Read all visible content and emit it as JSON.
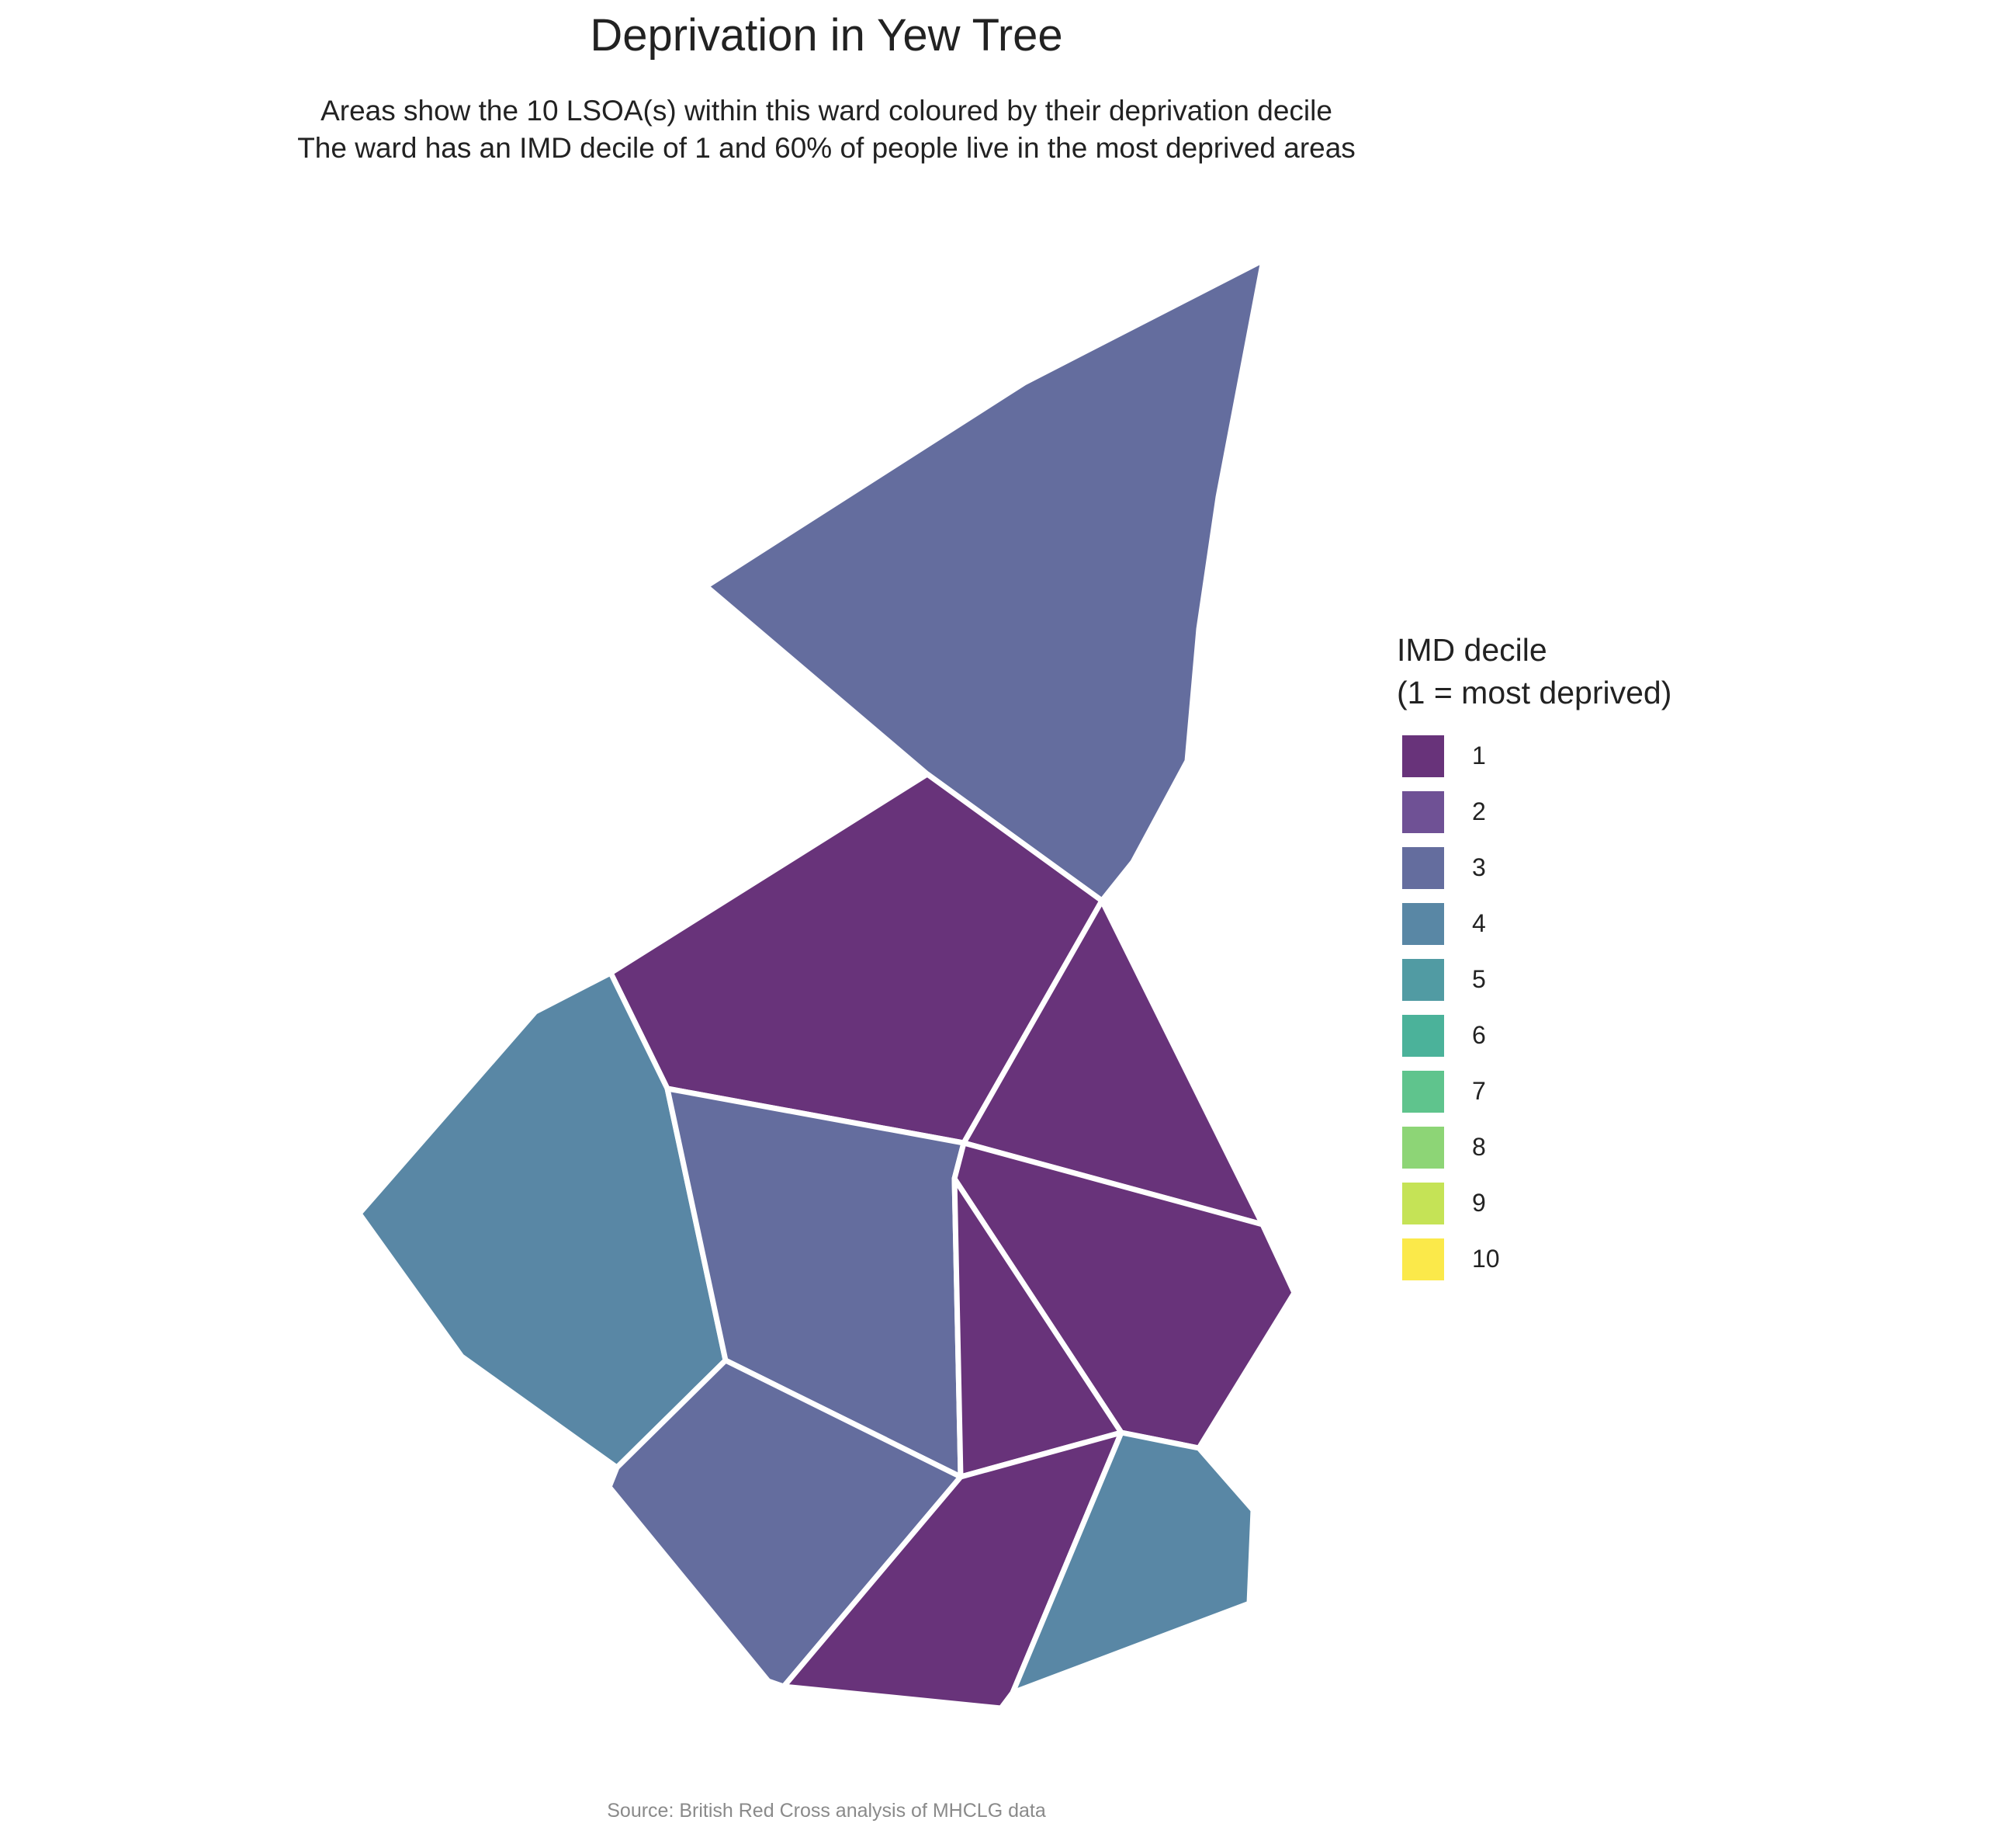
{
  "title": "Deprivation in Yew Tree",
  "subtitle_lines": [
    "Areas show the 10 LSOA(s) within this ward coloured by their deprivation decile",
    "The ward has an IMD decile of 1 and 60% of people live in the most deprived areas"
  ],
  "legend": {
    "title_lines": [
      "IMD decile",
      "(1 = most deprived)"
    ],
    "items": [
      {
        "label": "1",
        "color": "#68337A"
      },
      {
        "label": "2",
        "color": "#6F5195"
      },
      {
        "label": "3",
        "color": "#646D9E"
      },
      {
        "label": "4",
        "color": "#5987A5"
      },
      {
        "label": "5",
        "color": "#519BA3"
      },
      {
        "label": "6",
        "color": "#4BB29A"
      },
      {
        "label": "7",
        "color": "#5FC48D"
      },
      {
        "label": "8",
        "color": "#8DD576"
      },
      {
        "label": "9",
        "color": "#C5E356"
      },
      {
        "label": "10",
        "color": "#FBE94A"
      }
    ]
  },
  "areas": [
    {
      "id": "north",
      "decile": 3
    },
    {
      "id": "central-north",
      "decile": 1
    },
    {
      "id": "east-upper",
      "decile": 1
    },
    {
      "id": "west",
      "decile": 4
    },
    {
      "id": "central",
      "decile": 3
    },
    {
      "id": "east-middle",
      "decile": 1
    },
    {
      "id": "central-south-wedge",
      "decile": 1
    },
    {
      "id": "south-west",
      "decile": 3
    },
    {
      "id": "south",
      "decile": 1
    },
    {
      "id": "south-east",
      "decile": 4
    }
  ],
  "caption": "Source: British Red Cross analysis of MHCLG data"
}
